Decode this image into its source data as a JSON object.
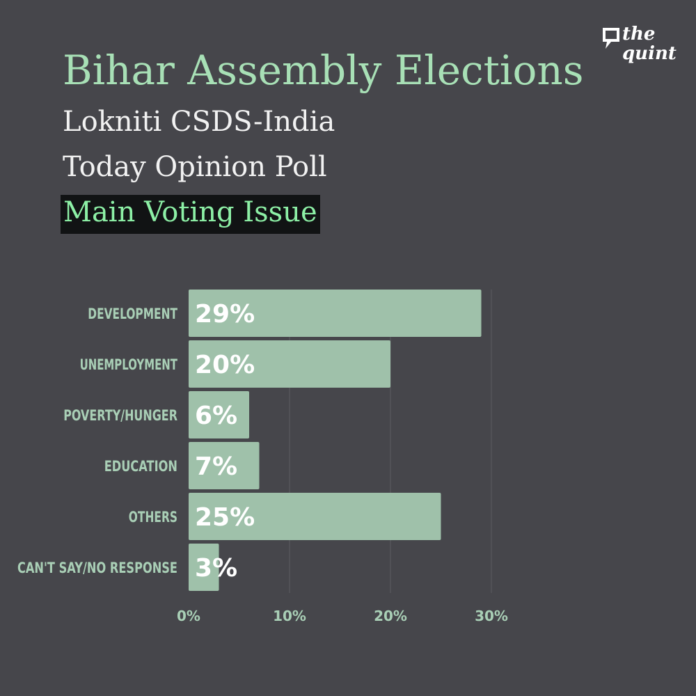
{
  "header": {
    "title": "Bihar Assembly Elections",
    "subtitle_line1": "Lokniti CSDS-India",
    "subtitle_line2": "Today Opinion Poll",
    "highlight": "Main Voting Issue"
  },
  "logo": {
    "line1": "the",
    "line2": "quint",
    "icon": "quint-speech-bubble-icon"
  },
  "colors": {
    "background": "#46464b",
    "bar": "#9fc1aa",
    "bar_label": "#ffffff",
    "category_label": "#a9cfb6",
    "tick_label": "#a9cfb6",
    "gridline": "#5c5c61",
    "title": "#a8e0b6",
    "highlight_text": "#8df0a6",
    "highlight_bg": "#111314"
  },
  "chart_data": {
    "type": "bar",
    "orientation": "horizontal",
    "categories": [
      "DEVELOPMENT",
      "UNEMPLOYMENT",
      "POVERTY/HUNGER",
      "EDUCATION",
      "OTHERS",
      "CAN'T SAY/NO RESPONSE"
    ],
    "values": [
      29,
      20,
      6,
      7,
      25,
      3
    ],
    "value_labels": [
      "29%",
      "20%",
      "6%",
      "7%",
      "25%",
      "3%"
    ],
    "xlim": [
      0,
      30
    ],
    "xticks": [
      0,
      10,
      20,
      30
    ],
    "xtick_labels": [
      "0%",
      "10%",
      "20%",
      "30%"
    ],
    "grid": true,
    "xlabel": "",
    "ylabel": ""
  }
}
